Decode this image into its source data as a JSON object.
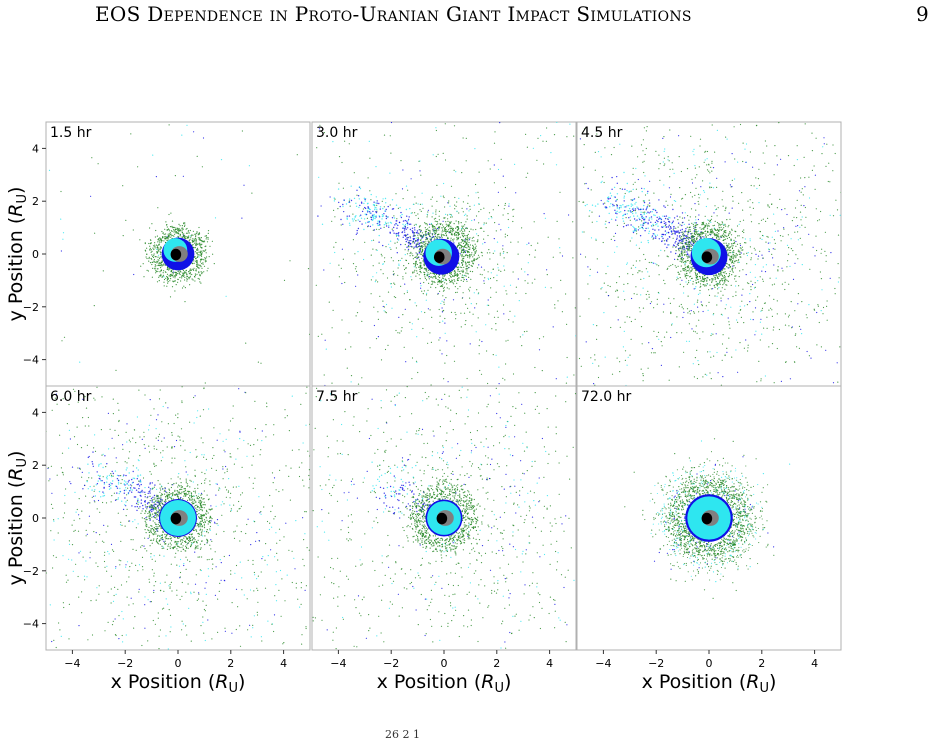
{
  "running_head": "EOS Dependence in Proto-Uranian Giant Impact Simulations",
  "page_number": "9",
  "figure": {
    "panels": [
      {
        "time_label": "1.5 hr"
      },
      {
        "time_label": "3.0 hr"
      },
      {
        "time_label": "4.5 hr"
      },
      {
        "time_label": "6.0 hr"
      },
      {
        "time_label": "7.5 hr"
      },
      {
        "time_label": "72.0 hr"
      }
    ],
    "y_axis_label": "y Position",
    "x_axis_label": "x Position",
    "unit_symbol": "R",
    "unit_subscript": "U",
    "x_ticks": [
      "−4",
      "−2",
      "0",
      "2",
      "4"
    ],
    "y_ticks": [
      "4",
      "2",
      "0",
      "−2",
      "−4"
    ],
    "axis_range": [
      -5,
      5
    ],
    "colors": {
      "black_core": "#000000",
      "gray_core": "#808080",
      "blue": "#1010e6",
      "cyan": "#2ee6f0",
      "green": "#2a8a2a",
      "frame": "#b0b0b0"
    }
  },
  "caption_fragment": "26  2  1"
}
